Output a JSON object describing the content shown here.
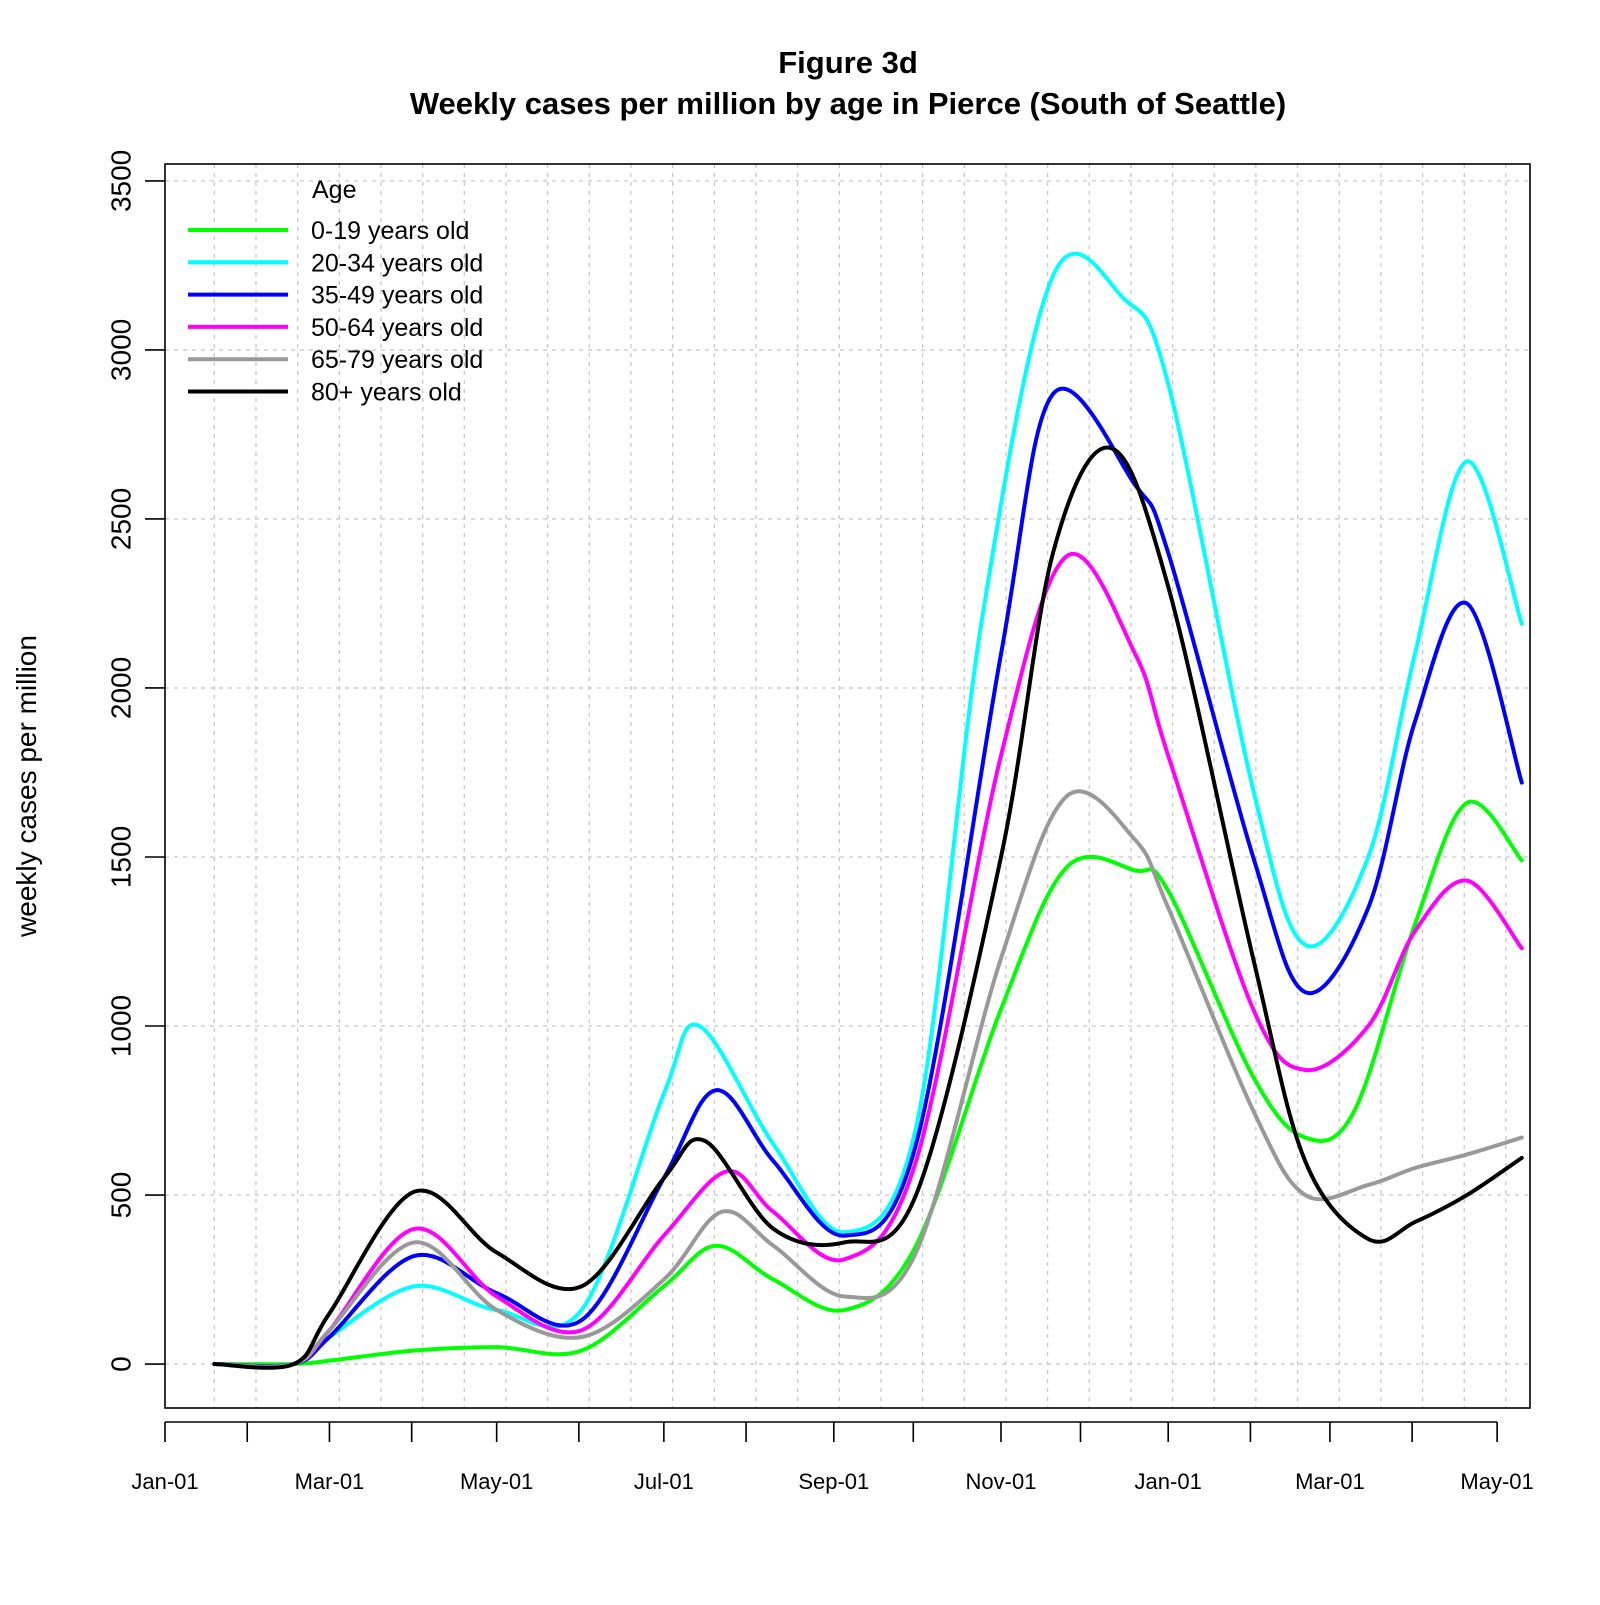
{
  "chart_data": {
    "type": "line",
    "title": "Figure 3d",
    "subtitle": "Weekly cases per million by age in Pierce (South of Seattle)",
    "xlabel": "",
    "ylabel": "weekly cases per million",
    "x_domain": [
      "2020-01-01",
      "2021-05-13"
    ],
    "ylim": [
      -130,
      3550
    ],
    "y_ticks": [
      0,
      500,
      1000,
      1500,
      2000,
      2500,
      3000,
      3500
    ],
    "x_ticks": [
      {
        "date": "2020-01-01",
        "label": "Jan-01"
      },
      {
        "date": "2020-03-01",
        "label": "Mar-01"
      },
      {
        "date": "2020-05-01",
        "label": "May-01"
      },
      {
        "date": "2020-07-01",
        "label": "Jul-01"
      },
      {
        "date": "2020-09-01",
        "label": "Sep-01"
      },
      {
        "date": "2020-11-01",
        "label": "Nov-01"
      },
      {
        "date": "2021-01-01",
        "label": "Jan-01"
      },
      {
        "date": "2021-03-01",
        "label": "Mar-01"
      },
      {
        "date": "2021-05-01",
        "label": "May-01"
      }
    ],
    "x_minor_ticks": [
      "2020-01-31",
      "2020-03-31",
      "2020-05-31",
      "2020-07-31",
      "2020-09-30",
      "2020-11-30",
      "2021-01-31",
      "2021-03-31"
    ],
    "grid": true,
    "legend": {
      "title": "Age",
      "position": "top-left"
    },
    "series": [
      {
        "name": "0-19 years old",
        "color": "#00ff00",
        "points": [
          [
            "2020-01-19",
            0
          ],
          [
            "2020-02-17",
            0
          ],
          [
            "2020-03-01",
            10
          ],
          [
            "2020-04-01",
            40
          ],
          [
            "2020-05-01",
            50
          ],
          [
            "2020-06-01",
            40
          ],
          [
            "2020-07-01",
            230
          ],
          [
            "2020-07-20",
            350
          ],
          [
            "2020-08-10",
            250
          ],
          [
            "2020-09-05",
            160
          ],
          [
            "2020-10-01",
            350
          ],
          [
            "2020-11-01",
            1050
          ],
          [
            "2020-11-25",
            1470
          ],
          [
            "2020-12-20",
            1460
          ],
          [
            "2021-01-01",
            1400
          ],
          [
            "2021-02-01",
            850
          ],
          [
            "2021-02-20",
            670
          ],
          [
            "2021-03-10",
            750
          ],
          [
            "2021-04-01",
            1300
          ],
          [
            "2021-04-20",
            1660
          ],
          [
            "2021-05-10",
            1490
          ]
        ]
      },
      {
        "name": "20-34 years old",
        "color": "#00ffff",
        "points": [
          [
            "2020-01-19",
            0
          ],
          [
            "2020-02-17",
            0
          ],
          [
            "2020-03-01",
            80
          ],
          [
            "2020-04-01",
            230
          ],
          [
            "2020-05-01",
            160
          ],
          [
            "2020-06-01",
            160
          ],
          [
            "2020-07-01",
            800
          ],
          [
            "2020-07-14",
            1000
          ],
          [
            "2020-08-10",
            650
          ],
          [
            "2020-09-05",
            390
          ],
          [
            "2020-10-01",
            700
          ],
          [
            "2020-10-25",
            2200
          ],
          [
            "2020-11-20",
            3220
          ],
          [
            "2020-12-16",
            3150
          ],
          [
            "2021-01-01",
            2900
          ],
          [
            "2021-02-01",
            1700
          ],
          [
            "2021-02-20",
            1240
          ],
          [
            "2021-03-15",
            1500
          ],
          [
            "2021-04-01",
            2100
          ],
          [
            "2021-04-20",
            2670
          ],
          [
            "2021-05-10",
            2190
          ]
        ]
      },
      {
        "name": "35-49 years old",
        "color": "#0000ff",
        "points": [
          [
            "2020-01-19",
            0
          ],
          [
            "2020-02-17",
            0
          ],
          [
            "2020-03-01",
            80
          ],
          [
            "2020-04-01",
            320
          ],
          [
            "2020-05-01",
            210
          ],
          [
            "2020-06-01",
            130
          ],
          [
            "2020-07-01",
            550
          ],
          [
            "2020-07-20",
            810
          ],
          [
            "2020-08-10",
            600
          ],
          [
            "2020-09-05",
            380
          ],
          [
            "2020-10-01",
            650
          ],
          [
            "2020-11-01",
            2100
          ],
          [
            "2020-11-20",
            2870
          ],
          [
            "2020-12-20",
            2600
          ],
          [
            "2021-01-01",
            2400
          ],
          [
            "2021-02-01",
            1500
          ],
          [
            "2021-02-20",
            1100
          ],
          [
            "2021-03-15",
            1350
          ],
          [
            "2021-04-01",
            1900
          ],
          [
            "2021-04-20",
            2250
          ],
          [
            "2021-05-10",
            1720
          ]
        ]
      },
      {
        "name": "50-64 years old",
        "color": "#ff00ff",
        "points": [
          [
            "2020-01-19",
            0
          ],
          [
            "2020-02-17",
            0
          ],
          [
            "2020-03-01",
            100
          ],
          [
            "2020-04-01",
            400
          ],
          [
            "2020-05-01",
            200
          ],
          [
            "2020-06-01",
            100
          ],
          [
            "2020-07-01",
            380
          ],
          [
            "2020-07-24",
            570
          ],
          [
            "2020-08-10",
            450
          ],
          [
            "2020-09-05",
            310
          ],
          [
            "2020-10-01",
            600
          ],
          [
            "2020-11-01",
            1800
          ],
          [
            "2020-11-25",
            2390
          ],
          [
            "2020-12-20",
            2100
          ],
          [
            "2021-01-01",
            1800
          ],
          [
            "2021-02-01",
            1050
          ],
          [
            "2021-02-20",
            870
          ],
          [
            "2021-03-15",
            1000
          ],
          [
            "2021-04-01",
            1280
          ],
          [
            "2021-04-20",
            1430
          ],
          [
            "2021-05-10",
            1230
          ]
        ]
      },
      {
        "name": "65-79 years old",
        "color": "#999999",
        "points": [
          [
            "2020-01-19",
            0
          ],
          [
            "2020-02-17",
            0
          ],
          [
            "2020-03-01",
            100
          ],
          [
            "2020-04-01",
            360
          ],
          [
            "2020-05-01",
            160
          ],
          [
            "2020-06-01",
            80
          ],
          [
            "2020-07-01",
            250
          ],
          [
            "2020-07-22",
            450
          ],
          [
            "2020-08-10",
            350
          ],
          [
            "2020-09-05",
            200
          ],
          [
            "2020-10-01",
            330
          ],
          [
            "2020-11-01",
            1200
          ],
          [
            "2020-11-25",
            1680
          ],
          [
            "2020-12-20",
            1550
          ],
          [
            "2021-01-01",
            1350
          ],
          [
            "2021-02-01",
            750
          ],
          [
            "2021-02-20",
            500
          ],
          [
            "2021-03-15",
            530
          ],
          [
            "2021-04-01",
            580
          ],
          [
            "2021-04-20",
            620
          ],
          [
            "2021-05-10",
            670
          ]
        ]
      },
      {
        "name": "80+ years old",
        "color": "#000000",
        "points": [
          [
            "2020-01-19",
            0
          ],
          [
            "2020-02-17",
            0
          ],
          [
            "2020-03-01",
            150
          ],
          [
            "2020-04-01",
            510
          ],
          [
            "2020-05-01",
            330
          ],
          [
            "2020-06-01",
            230
          ],
          [
            "2020-07-01",
            550
          ],
          [
            "2020-07-16",
            660
          ],
          [
            "2020-08-10",
            400
          ],
          [
            "2020-09-05",
            360
          ],
          [
            "2020-10-01",
            500
          ],
          [
            "2020-11-01",
            1500
          ],
          [
            "2020-11-20",
            2400
          ],
          [
            "2020-12-11",
            2710
          ],
          [
            "2021-01-01",
            2300
          ],
          [
            "2021-02-01",
            1200
          ],
          [
            "2021-02-20",
            600
          ],
          [
            "2021-03-15",
            370
          ],
          [
            "2021-04-01",
            420
          ],
          [
            "2021-04-20",
            500
          ],
          [
            "2021-05-10",
            610
          ]
        ]
      }
    ]
  }
}
